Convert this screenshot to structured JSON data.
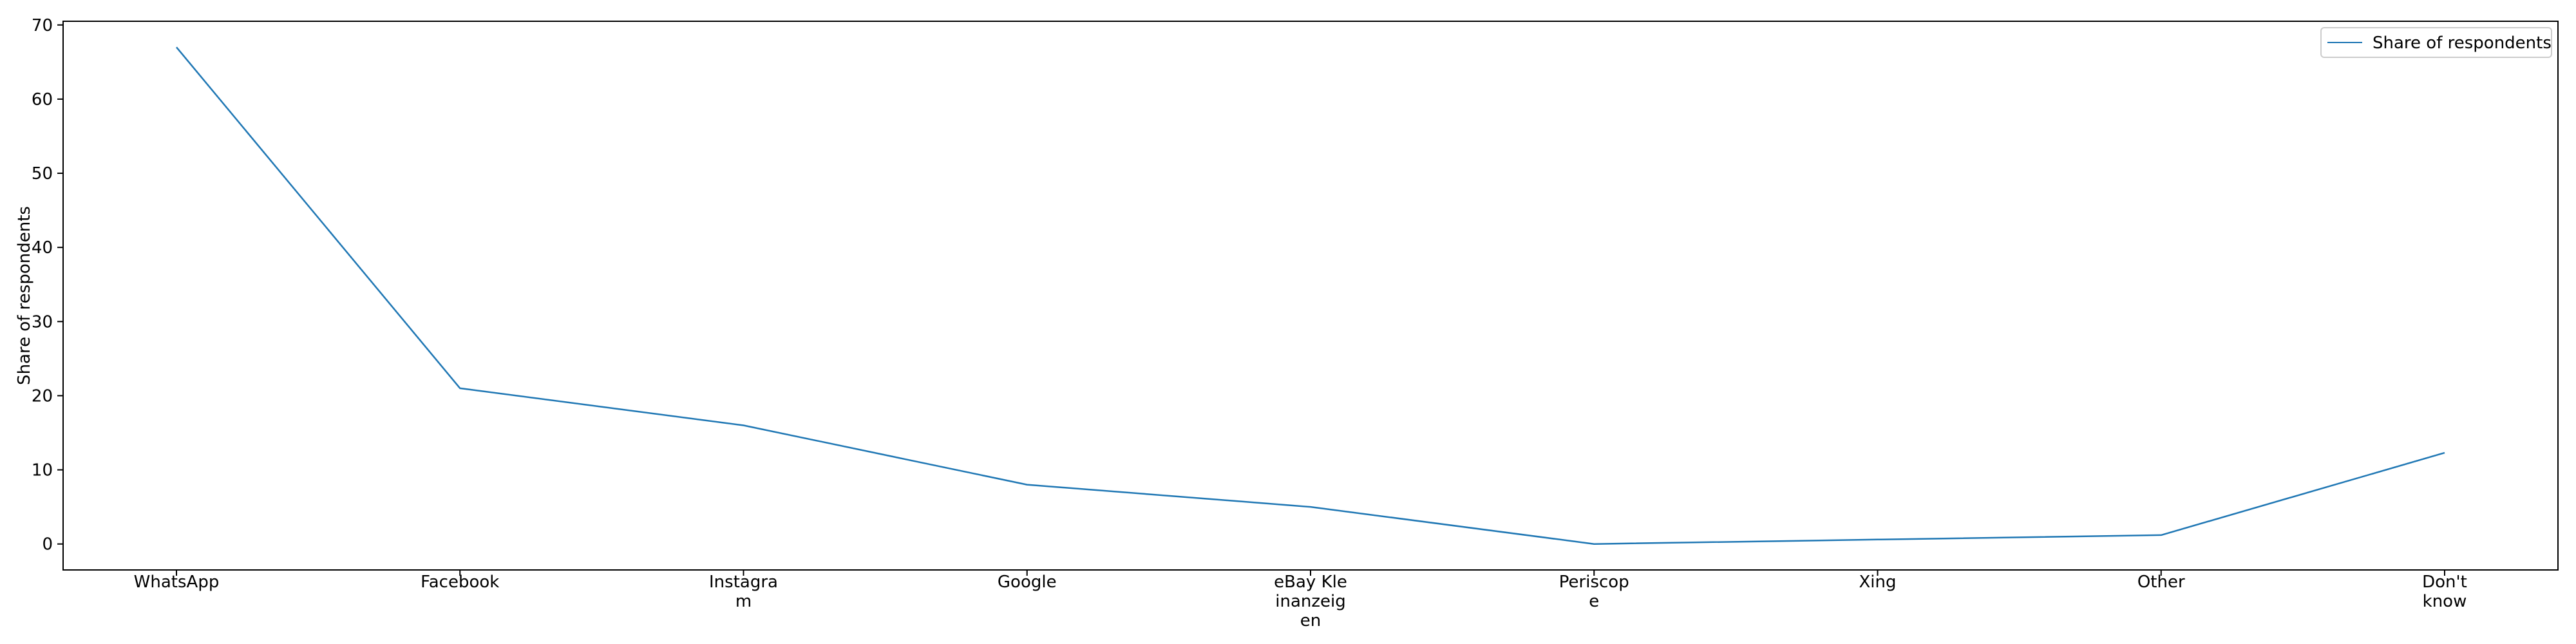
{
  "chart_data": {
    "type": "line",
    "title": "",
    "xlabel": "",
    "ylabel": "Share of respondents",
    "ylim": [
      -3.5,
      70.5
    ],
    "yticks": [
      0,
      10,
      20,
      30,
      40,
      50,
      60,
      70
    ],
    "categories": [
      [
        "WhatsApp"
      ],
      [
        "Facebook"
      ],
      [
        "Instagra",
        "m"
      ],
      [
        "Google"
      ],
      [
        "eBay Kle",
        "inanzeig",
        "en"
      ],
      [
        "Periscop",
        "e"
      ],
      [
        "Xing"
      ],
      [
        "Other"
      ],
      [
        "Don't",
        "know"
      ]
    ],
    "series": [
      {
        "name": "Share of respondents",
        "color": "#1f77b4",
        "values": [
          67,
          21,
          16,
          8,
          5,
          0,
          0.6,
          1.2,
          12.3
        ]
      }
    ],
    "grid": false,
    "legend": "top-right"
  }
}
